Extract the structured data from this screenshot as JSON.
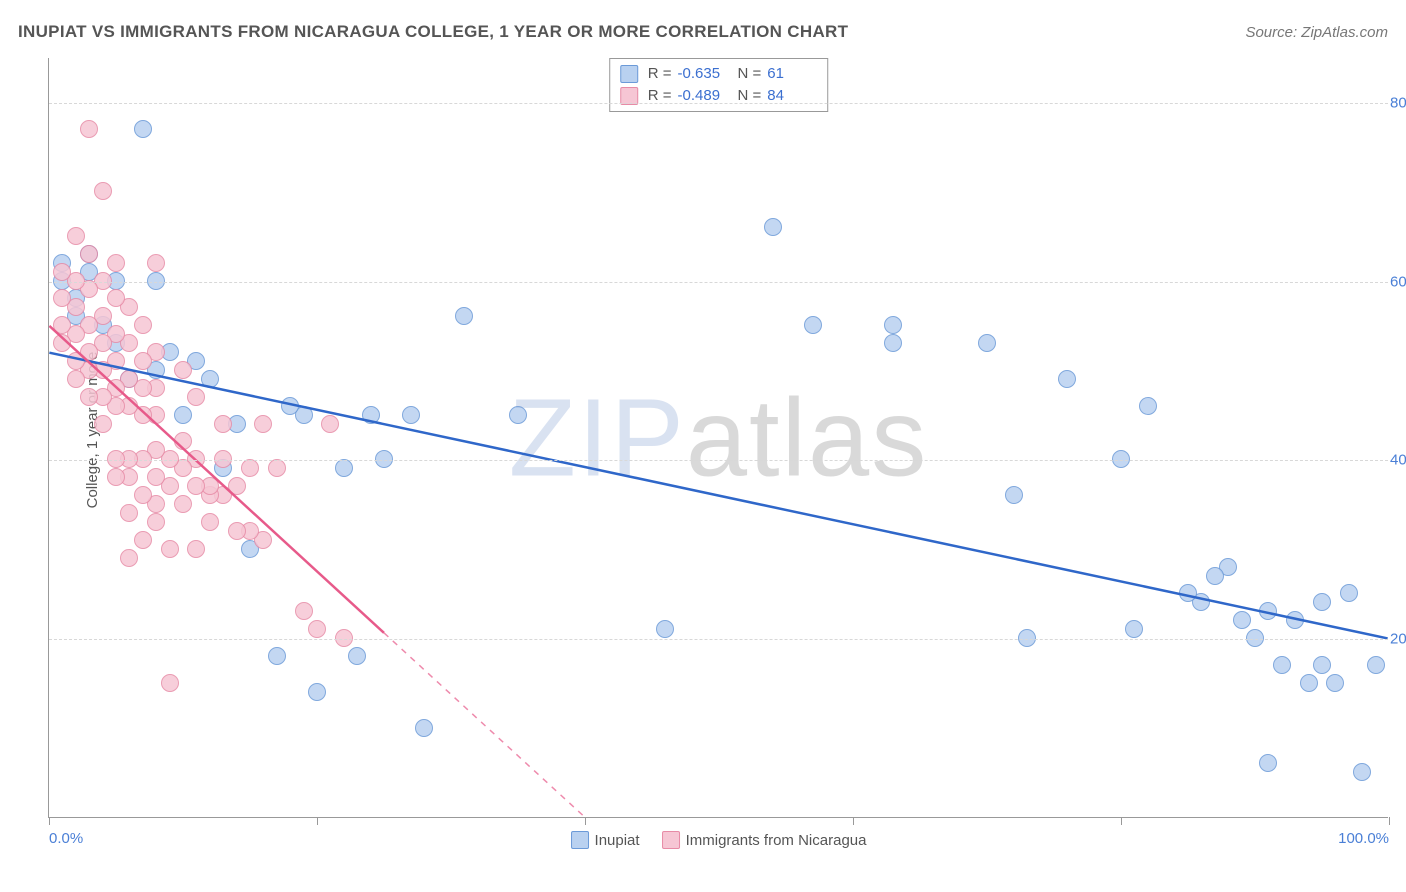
{
  "title": "INUPIAT VS IMMIGRANTS FROM NICARAGUA COLLEGE, 1 YEAR OR MORE CORRELATION CHART",
  "source_label": "Source: ZipAtlas.com",
  "ylabel": "College, 1 year or more",
  "watermark": {
    "part1": "ZIP",
    "part2": "atlas"
  },
  "chart": {
    "type": "scatter",
    "xlim": [
      0,
      100
    ],
    "ylim": [
      0,
      85
    ],
    "xticks": [
      0,
      20,
      40,
      60,
      80,
      100
    ],
    "xtick_labels": [
      "0.0%",
      "",
      "",
      "",
      "",
      "100.0%"
    ],
    "yticks": [
      20,
      40,
      60,
      80
    ],
    "ytick_labels": [
      "20.0%",
      "40.0%",
      "60.0%",
      "80.0%"
    ],
    "grid_color": "#d8d8d8",
    "background_color": "#ffffff",
    "marker_radius": 9,
    "marker_stroke_width": 1.3,
    "trend_line_width": 2.5
  },
  "series": [
    {
      "name": "Inupiat",
      "fill_color": "#b9d1f0",
      "stroke_color": "#6b9ad8",
      "line_color": "#2f67c9",
      "r": "-0.635",
      "n": "61",
      "trend": {
        "x1": 0,
        "y1": 52,
        "x2": 100,
        "y2": 20,
        "dash_after_x": null
      },
      "points": [
        [
          1,
          62
        ],
        [
          1,
          60
        ],
        [
          2,
          58
        ],
        [
          2,
          56
        ],
        [
          3,
          63
        ],
        [
          3,
          61
        ],
        [
          4,
          55
        ],
        [
          5,
          60
        ],
        [
          5,
          53
        ],
        [
          6,
          49
        ],
        [
          7,
          77
        ],
        [
          8,
          60
        ],
        [
          8,
          50
        ],
        [
          9,
          52
        ],
        [
          10,
          45
        ],
        [
          11,
          51
        ],
        [
          12,
          49
        ],
        [
          13,
          39
        ],
        [
          14,
          44
        ],
        [
          15,
          30
        ],
        [
          17,
          18
        ],
        [
          18,
          46
        ],
        [
          19,
          45
        ],
        [
          20,
          14
        ],
        [
          22,
          39
        ],
        [
          23,
          18
        ],
        [
          24,
          45
        ],
        [
          25,
          40
        ],
        [
          27,
          45
        ],
        [
          28,
          10
        ],
        [
          31,
          56
        ],
        [
          35,
          45
        ],
        [
          46,
          21
        ],
        [
          54,
          66
        ],
        [
          57,
          55
        ],
        [
          63,
          55
        ],
        [
          63,
          53
        ],
        [
          70,
          53
        ],
        [
          72,
          36
        ],
        [
          73,
          20
        ],
        [
          76,
          49
        ],
        [
          80,
          40
        ],
        [
          81,
          21
        ],
        [
          82,
          46
        ],
        [
          85,
          25
        ],
        [
          86,
          24
        ],
        [
          87,
          27
        ],
        [
          88,
          28
        ],
        [
          89,
          22
        ],
        [
          90,
          20
        ],
        [
          91,
          23
        ],
        [
          91,
          6
        ],
        [
          92,
          17
        ],
        [
          93,
          22
        ],
        [
          94,
          15
        ],
        [
          95,
          24
        ],
        [
          95,
          17
        ],
        [
          96,
          15
        ],
        [
          97,
          25
        ],
        [
          98,
          5
        ],
        [
          99,
          17
        ]
      ]
    },
    {
      "name": "Immigrants from Nicaragua",
      "fill_color": "#f6c6d4",
      "stroke_color": "#e78ba6",
      "line_color": "#e75a8a",
      "r": "-0.489",
      "n": "84",
      "trend": {
        "x1": 0,
        "y1": 55,
        "x2": 40,
        "y2": 0,
        "dash_after_x": 25
      },
      "points": [
        [
          1,
          61
        ],
        [
          1,
          58
        ],
        [
          1,
          55
        ],
        [
          1,
          53
        ],
        [
          2,
          65
        ],
        [
          2,
          60
        ],
        [
          2,
          57
        ],
        [
          2,
          54
        ],
        [
          2,
          51
        ],
        [
          2,
          49
        ],
        [
          3,
          77
        ],
        [
          3,
          63
        ],
        [
          3,
          59
        ],
        [
          3,
          55
        ],
        [
          3,
          52
        ],
        [
          3,
          50
        ],
        [
          3,
          47
        ],
        [
          4,
          70
        ],
        [
          4,
          60
        ],
        [
          4,
          56
        ],
        [
          4,
          53
        ],
        [
          4,
          50
        ],
        [
          4,
          47
        ],
        [
          4,
          44
        ],
        [
          5,
          62
        ],
        [
          5,
          58
        ],
        [
          5,
          54
        ],
        [
          5,
          51
        ],
        [
          5,
          48
        ],
        [
          5,
          46
        ],
        [
          5,
          40
        ],
        [
          5,
          38
        ],
        [
          6,
          57
        ],
        [
          6,
          53
        ],
        [
          6,
          49
        ],
        [
          6,
          46
        ],
        [
          6,
          40
        ],
        [
          6,
          38
        ],
        [
          6,
          34
        ],
        [
          6,
          29
        ],
        [
          7,
          55
        ],
        [
          7,
          51
        ],
        [
          7,
          48
        ],
        [
          7,
          45
        ],
        [
          7,
          40
        ],
        [
          7,
          36
        ],
        [
          7,
          31
        ],
        [
          8,
          62
        ],
        [
          8,
          52
        ],
        [
          8,
          48
        ],
        [
          8,
          45
        ],
        [
          8,
          41
        ],
        [
          8,
          38
        ],
        [
          8,
          35
        ],
        [
          8,
          33
        ],
        [
          9,
          40
        ],
        [
          9,
          37
        ],
        [
          9,
          30
        ],
        [
          9,
          15
        ],
        [
          10,
          50
        ],
        [
          10,
          42
        ],
        [
          10,
          39
        ],
        [
          10,
          35
        ],
        [
          11,
          47
        ],
        [
          11,
          40
        ],
        [
          11,
          37
        ],
        [
          11,
          30
        ],
        [
          12,
          37
        ],
        [
          12,
          36
        ],
        [
          12,
          33
        ],
        [
          13,
          44
        ],
        [
          13,
          40
        ],
        [
          13,
          36
        ],
        [
          14,
          32
        ],
        [
          14,
          37
        ],
        [
          15,
          32
        ],
        [
          15,
          39
        ],
        [
          16,
          44
        ],
        [
          16,
          31
        ],
        [
          17,
          39
        ],
        [
          19,
          23
        ],
        [
          20,
          21
        ],
        [
          21,
          44
        ],
        [
          22,
          20
        ]
      ]
    }
  ],
  "stats_legend_labels": {
    "r": "R =",
    "n": "N ="
  },
  "bottom_legend": [
    "Inupiat",
    "Immigrants from Nicaragua"
  ]
}
